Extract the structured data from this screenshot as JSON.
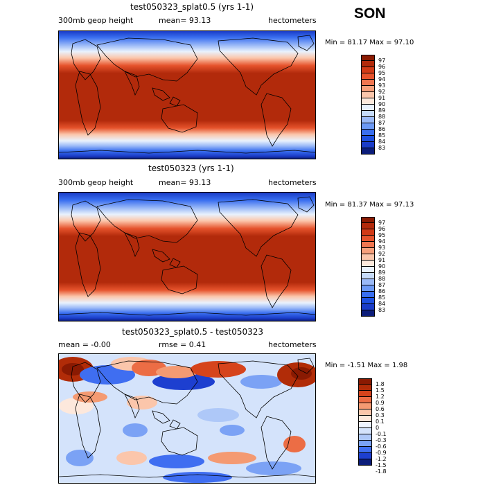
{
  "season": "SON",
  "colors": {
    "abs_ramp": [
      "#0c1d7a",
      "#1a3cc8",
      "#1e50e0",
      "#3a6ff0",
      "#6c99f5",
      "#9ab9f7",
      "#c6dbfa",
      "#e9f2fd",
      "#fde9dc",
      "#fbc6ab",
      "#f7a07c",
      "#f07650",
      "#e6532c",
      "#d13a16",
      "#b22a0b",
      "#8b1b02"
    ],
    "diff_ramp": [
      "#0c1d7a",
      "#1d3fd0",
      "#3f6ef1",
      "#7ba2f5",
      "#aec8f8",
      "#d4e3fb",
      "#eef4fe",
      "#fde8dc",
      "#fbc6ab",
      "#f49a72",
      "#ec6d45",
      "#d6441c",
      "#b12c08",
      "#8a1a02"
    ]
  },
  "panels": [
    {
      "title": "test050323_splat0.5 (yrs 1-1)",
      "left_text": "300mb geop height",
      "center_text": "mean=  93.13",
      "right_text": "hectometers",
      "minmax": "Min =  81.17 Max =  97.10",
      "colorbar_labels": [
        "97",
        "96",
        "95",
        "94",
        "93",
        "92",
        "91",
        "90",
        "89",
        "88",
        "87",
        "86",
        "85",
        "84",
        "83"
      ]
    },
    {
      "title": "test050323 (yrs 1-1)",
      "left_text": "300mb geop height",
      "center_text": "mean=  93.13",
      "right_text": "hectometers",
      "minmax": "Min =  81.37 Max =  97.13",
      "colorbar_labels": [
        "97",
        "96",
        "95",
        "94",
        "93",
        "92",
        "91",
        "90",
        "89",
        "88",
        "87",
        "86",
        "85",
        "84",
        "83"
      ]
    },
    {
      "title": "test050323_splat0.5 - test050323",
      "left_text": "mean =  -0.00",
      "center_text": "rmse =   0.41",
      "right_text": "hectometers",
      "minmax": "Min =  -1.51 Max =   1.98",
      "colorbar_labels": [
        "1.8",
        "1.5",
        "1.2",
        "0.9",
        "0.6",
        "0.3",
        "0.1",
        "0",
        "-0.1",
        "-0.3",
        "-0.6",
        "-0.9",
        "-1.2",
        "-1.5",
        "-1.8"
      ]
    }
  ]
}
